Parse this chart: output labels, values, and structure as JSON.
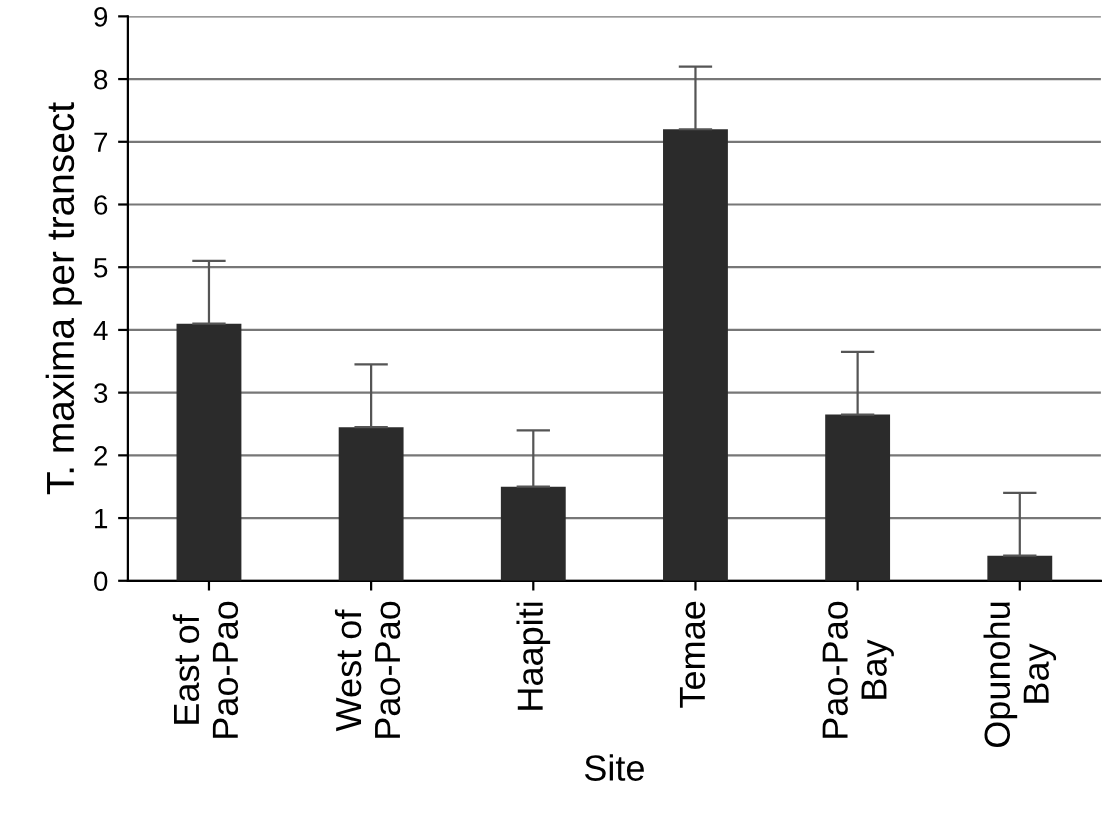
{
  "chart_data": {
    "type": "bar",
    "xlabel": "Site",
    "ylabel": "T. maxima per transect",
    "categories": [
      "East of\nPao-Pao",
      "West of\nPao-Pao",
      "Haapiti",
      "Temae",
      "Pao-Pao\nBay",
      "Opunohu\nBay"
    ],
    "values": [
      4.1,
      2.45,
      1.5,
      7.2,
      2.65,
      0.4
    ],
    "errors": [
      [
        4.1,
        5.1
      ],
      [
        2.45,
        3.45
      ],
      [
        1.5,
        2.4
      ],
      [
        7.2,
        8.2
      ],
      [
        2.65,
        3.65
      ],
      [
        0.4,
        1.4
      ]
    ],
    "color": "#2b2b2b",
    "ylim": [
      0,
      9
    ],
    "yticks": [
      0,
      1,
      2,
      3,
      4,
      5,
      6,
      7,
      8,
      9
    ],
    "grid": "y"
  }
}
